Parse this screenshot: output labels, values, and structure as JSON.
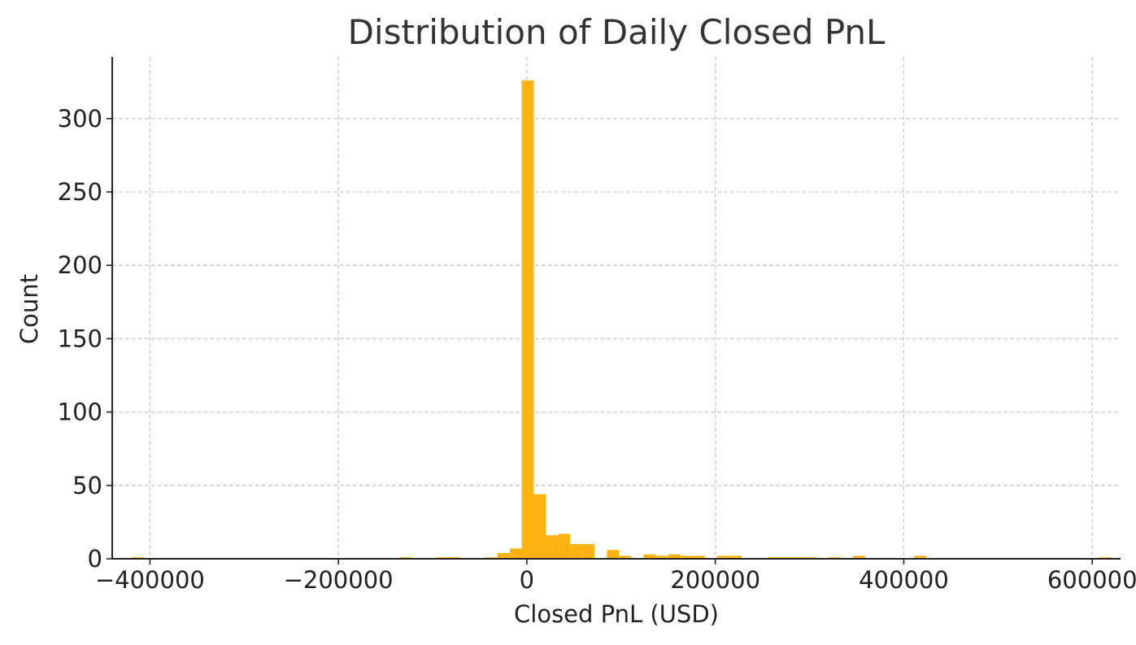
{
  "chart_data": {
    "type": "bar",
    "subtype": "histogram",
    "title": "Distribution of Daily Closed PnL",
    "xlabel": "Closed PnL (USD)",
    "ylabel": "Count",
    "xlim": [
      -440000,
      630000
    ],
    "ylim": [
      0,
      342
    ],
    "x_ticks": [
      -400000,
      -200000,
      0,
      200000,
      400000,
      600000
    ],
    "x_tick_labels": [
      "−400000",
      "−200000",
      "0",
      "200000",
      "400000",
      "600000"
    ],
    "y_ticks": [
      0,
      50,
      100,
      150,
      200,
      250,
      300
    ],
    "y_tick_labels": [
      "0",
      "50",
      "100",
      "150",
      "200",
      "250",
      "300"
    ],
    "grid": true,
    "bar_color": "#FBB10F",
    "bin_width": 12900,
    "bins": [
      {
        "x0": -419000,
        "count": 1
      },
      {
        "x0": -135000,
        "count": 1
      },
      {
        "x0": -96000,
        "count": 1
      },
      {
        "x0": -83000,
        "count": 1
      },
      {
        "x0": -44000,
        "count": 1
      },
      {
        "x0": -31000,
        "count": 4
      },
      {
        "x0": -18000,
        "count": 7
      },
      {
        "x0": -5500,
        "count": 326
      },
      {
        "x0": 7400,
        "count": 44
      },
      {
        "x0": 20300,
        "count": 16
      },
      {
        "x0": 33200,
        "count": 17
      },
      {
        "x0": 46100,
        "count": 10
      },
      {
        "x0": 59000,
        "count": 10
      },
      {
        "x0": 85000,
        "count": 6
      },
      {
        "x0": 98000,
        "count": 2
      },
      {
        "x0": 124000,
        "count": 3
      },
      {
        "x0": 137000,
        "count": 2
      },
      {
        "x0": 150000,
        "count": 3
      },
      {
        "x0": 163000,
        "count": 2
      },
      {
        "x0": 176000,
        "count": 2
      },
      {
        "x0": 202000,
        "count": 2
      },
      {
        "x0": 215000,
        "count": 2
      },
      {
        "x0": 255000,
        "count": 1
      },
      {
        "x0": 268000,
        "count": 1
      },
      {
        "x0": 281000,
        "count": 1
      },
      {
        "x0": 294000,
        "count": 1
      },
      {
        "x0": 320000,
        "count": 1
      },
      {
        "x0": 346000,
        "count": 2
      },
      {
        "x0": 411000,
        "count": 2
      },
      {
        "x0": 607000,
        "count": 1
      }
    ]
  }
}
